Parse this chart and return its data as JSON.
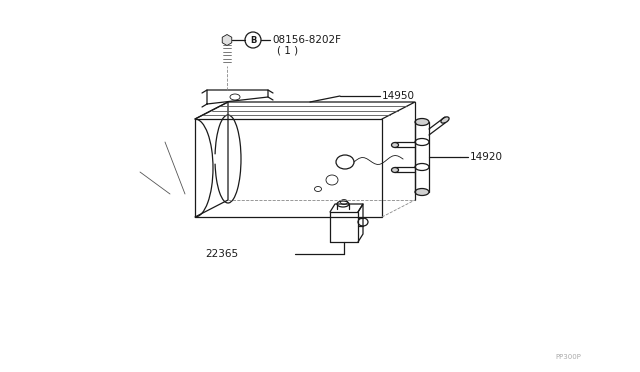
{
  "bg_color": "#ffffff",
  "line_color": "#1a1a1a",
  "gray": "#888888",
  "light_gray": "#cccccc",
  "part_number_08156": "08156-8202F",
  "part_number_08156_sub": "( 1 )",
  "part_number_14950": "14950",
  "part_number_14920": "14920",
  "part_number_22365": "22365",
  "watermark": "PP300P",
  "circle_B": "B",
  "figsize": [
    6.4,
    3.72
  ],
  "dpi": 100
}
